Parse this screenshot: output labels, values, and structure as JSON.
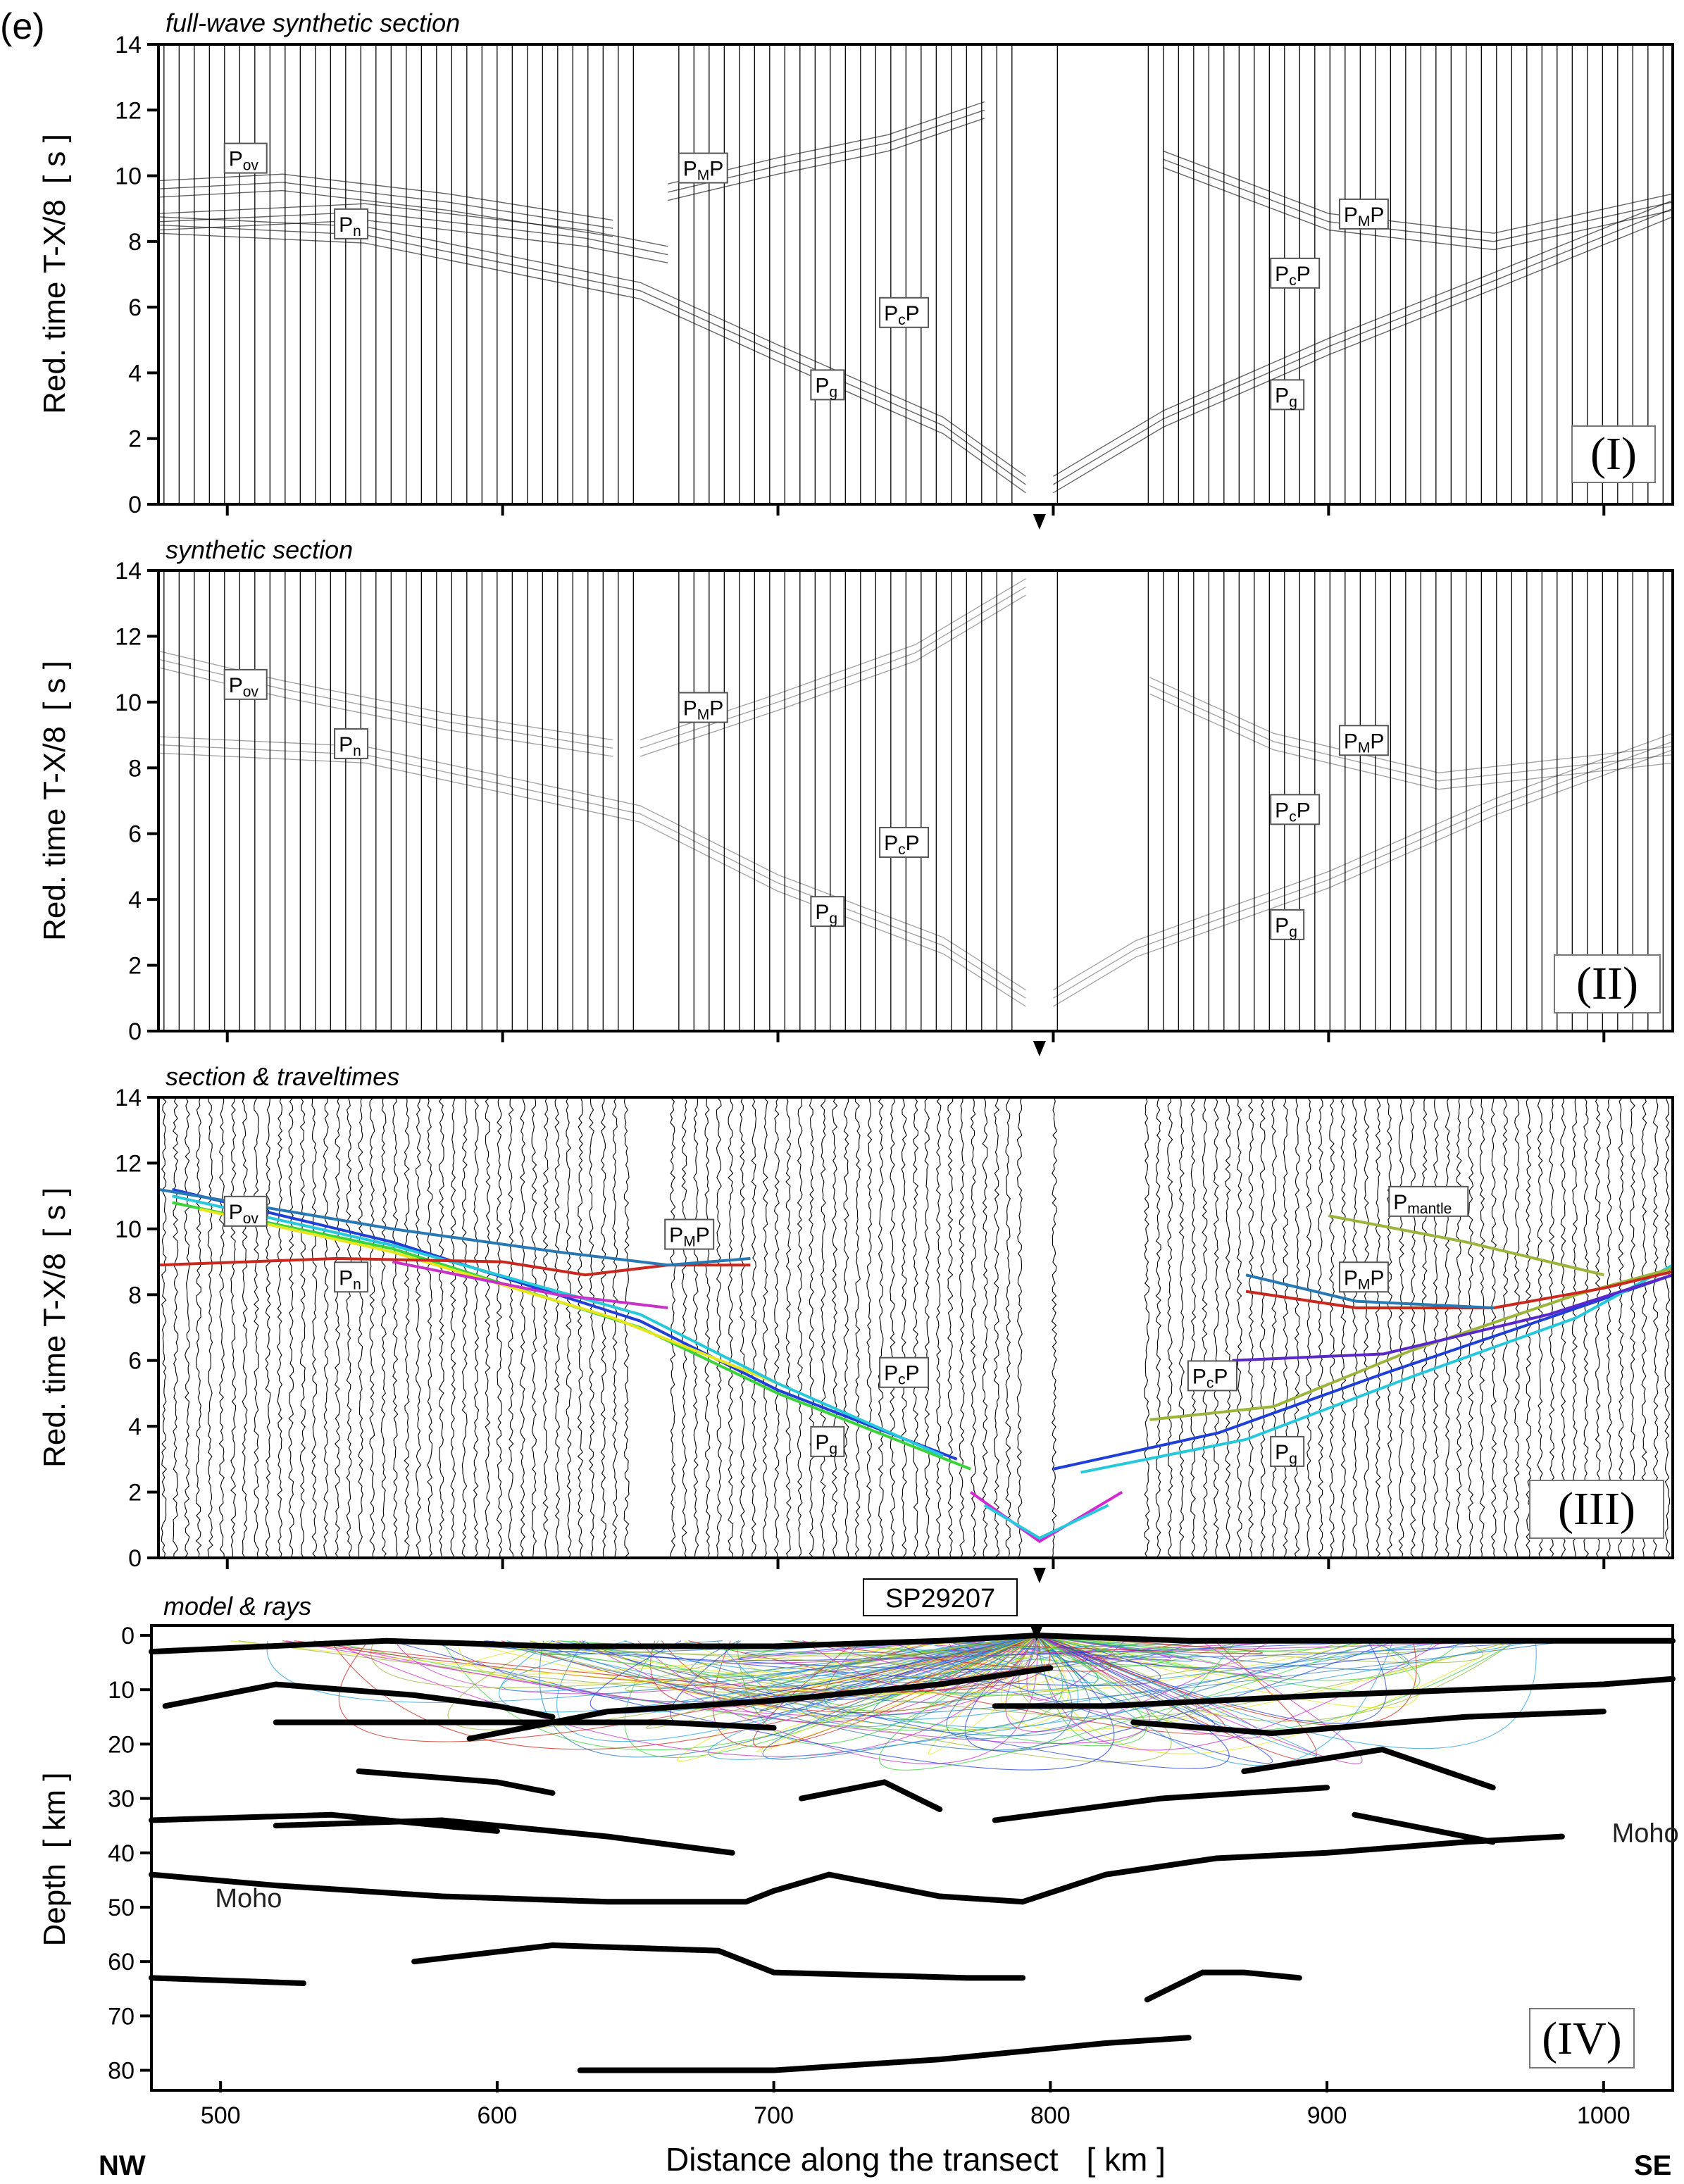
{
  "figure": {
    "panel_letter": "(e)",
    "xlabel": "Distance along the transect",
    "xunit": "[ km ]",
    "direction_left": "NW",
    "direction_right": "SE",
    "shot_point": "SP29207",
    "shot_km": 795
  },
  "chart_data": [
    {
      "type": "line",
      "panel": "I",
      "title": "full-wave synthetic section",
      "ylabel": "Red. time  T-X/8",
      "yunit": "[ s ]",
      "xlim": [
        475,
        1025
      ],
      "ylim": [
        0,
        14
      ],
      "xticks": [
        500,
        600,
        700,
        800,
        900,
        1000
      ],
      "yticks": [
        0,
        2,
        4,
        6,
        8,
        10,
        12,
        14
      ],
      "phases": [
        {
          "base": "P",
          "sub": "ov",
          "tail": "",
          "x": 500,
          "y": 10.3
        },
        {
          "base": "P",
          "sub": "n",
          "tail": "",
          "x": 540,
          "y": 8.3
        },
        {
          "base": "P",
          "sub": "M",
          "tail": "P",
          "x": 665,
          "y": 10.0
        },
        {
          "base": "P",
          "sub": "c",
          "tail": "P",
          "x": 738,
          "y": 5.6
        },
        {
          "base": "P",
          "sub": "g",
          "tail": "",
          "x": 713,
          "y": 3.4
        },
        {
          "base": "P",
          "sub": "M",
          "tail": "P",
          "x": 905,
          "y": 8.6
        },
        {
          "base": "P",
          "sub": "c",
          "tail": "P",
          "x": 880,
          "y": 6.8
        },
        {
          "base": "P",
          "sub": "g",
          "tail": "",
          "x": 880,
          "y": 3.1
        }
      ],
      "series": [
        {
          "name": "Pg",
          "x": [
            475,
            550,
            650,
            700,
            760,
            790
          ],
          "y": [
            8.5,
            8.2,
            6.5,
            4.6,
            2.4,
            0.6
          ]
        },
        {
          "name": "Pn",
          "x": [
            475,
            550,
            630,
            660
          ],
          "y": [
            8.6,
            8.9,
            8.1,
            7.6
          ]
        },
        {
          "name": "Pov",
          "x": [
            475,
            520,
            580,
            640
          ],
          "y": [
            9.6,
            9.8,
            9.2,
            8.4
          ]
        },
        {
          "name": "PmP",
          "x": [
            660,
            700,
            740,
            775
          ],
          "y": [
            9.5,
            10.3,
            11.0,
            12.0
          ]
        },
        {
          "name": "Pg-SE",
          "x": [
            800,
            840,
            900,
            960,
            1025
          ],
          "y": [
            0.6,
            2.6,
            4.8,
            6.8,
            9.0
          ]
        },
        {
          "name": "PmP-SE",
          "x": [
            840,
            900,
            960,
            1025
          ],
          "y": [
            10.5,
            8.6,
            8.0,
            9.2
          ]
        }
      ],
      "roman": "(I)"
    },
    {
      "type": "line",
      "panel": "II",
      "title": "synthetic section",
      "ylabel": "Red. time  T-X/8",
      "yunit": "[ s ]",
      "xlim": [
        475,
        1025
      ],
      "ylim": [
        0,
        14
      ],
      "xticks": [
        500,
        600,
        700,
        800,
        900,
        1000
      ],
      "yticks": [
        0,
        2,
        4,
        6,
        8,
        10,
        12,
        14
      ],
      "phases": [
        {
          "base": "P",
          "sub": "ov",
          "tail": "",
          "x": 500,
          "y": 10.3
        },
        {
          "base": "P",
          "sub": "n",
          "tail": "",
          "x": 540,
          "y": 8.5
        },
        {
          "base": "P",
          "sub": "M",
          "tail": "P",
          "x": 665,
          "y": 9.6
        },
        {
          "base": "P",
          "sub": "c",
          "tail": "P",
          "x": 738,
          "y": 5.5
        },
        {
          "base": "P",
          "sub": "g",
          "tail": "",
          "x": 713,
          "y": 3.4
        },
        {
          "base": "P",
          "sub": "M",
          "tail": "P",
          "x": 905,
          "y": 8.6
        },
        {
          "base": "P",
          "sub": "c",
          "tail": "P",
          "x": 880,
          "y": 6.5
        },
        {
          "base": "P",
          "sub": "g",
          "tail": "",
          "x": 880,
          "y": 3.0
        }
      ],
      "series": [
        {
          "name": "Pg",
          "x": [
            475,
            550,
            650,
            700,
            760,
            790
          ],
          "y": [
            8.7,
            8.4,
            6.6,
            4.5,
            2.6,
            1.0
          ]
        },
        {
          "name": "Pov",
          "x": [
            475,
            520,
            580,
            640
          ],
          "y": [
            11.3,
            10.4,
            9.4,
            8.6
          ]
        },
        {
          "name": "PmP",
          "x": [
            650,
            700,
            750,
            790
          ],
          "y": [
            8.6,
            10.0,
            11.5,
            13.5
          ]
        },
        {
          "name": "Pg-SE",
          "x": [
            800,
            830,
            900,
            960,
            1025
          ],
          "y": [
            1.0,
            2.5,
            4.6,
            6.8,
            8.8
          ]
        },
        {
          "name": "PmP-SE",
          "x": [
            835,
            880,
            940,
            1025
          ],
          "y": [
            10.5,
            8.8,
            7.6,
            8.4
          ]
        }
      ],
      "roman": "(II)"
    },
    {
      "type": "line",
      "panel": "III",
      "title": "section & traveltimes",
      "ylabel": "Red. time  T-X/8",
      "yunit": "[ s ]",
      "xlim": [
        475,
        1025
      ],
      "ylim": [
        0,
        14
      ],
      "xticks": [
        500,
        600,
        700,
        800,
        900,
        1000
      ],
      "yticks": [
        0,
        2,
        4,
        6,
        8,
        10,
        12,
        14
      ],
      "phases": [
        {
          "base": "P",
          "sub": "ov",
          "tail": "",
          "x": 500,
          "y": 10.3
        },
        {
          "base": "P",
          "sub": "n",
          "tail": "",
          "x": 540,
          "y": 8.3
        },
        {
          "base": "P",
          "sub": "M",
          "tail": "P",
          "x": 660,
          "y": 9.6
        },
        {
          "base": "P",
          "sub": "c",
          "tail": "P",
          "x": 738,
          "y": 5.4
        },
        {
          "base": "P",
          "sub": "g",
          "tail": "",
          "x": 713,
          "y": 3.3
        },
        {
          "base": "P",
          "sub": "mantle",
          "tail": "",
          "x": 923,
          "y": 10.6
        },
        {
          "base": "P",
          "sub": "M",
          "tail": "P",
          "x": 905,
          "y": 8.3
        },
        {
          "base": "P",
          "sub": "c",
          "tail": "P",
          "x": 850,
          "y": 5.3
        },
        {
          "base": "P",
          "sub": "g",
          "tail": "",
          "x": 880,
          "y": 3.0
        }
      ],
      "series": [
        {
          "name": "Pg main (blue)",
          "color": "#1f3fd6",
          "x": [
            480,
            560,
            650,
            700,
            765
          ],
          "y": [
            11.2,
            9.6,
            7.2,
            5.1,
            3.0
          ]
        },
        {
          "name": "Pg (green)",
          "color": "#3cd23c",
          "x": [
            480,
            560,
            650,
            700,
            770
          ],
          "y": [
            10.8,
            9.4,
            7.0,
            5.0,
            2.7
          ]
        },
        {
          "name": "Pg (yellow)",
          "color": "#e6e61e",
          "x": [
            490,
            560,
            640,
            700
          ],
          "y": [
            10.6,
            9.3,
            7.3,
            5.3
          ]
        },
        {
          "name": "Pg (cyan)",
          "color": "#28c8dc",
          "x": [
            480,
            560,
            650,
            700,
            760
          ],
          "y": [
            11.0,
            9.5,
            7.4,
            5.3,
            3.1
          ]
        },
        {
          "name": "Pn (red)",
          "color": "#c8281e",
          "x": [
            475,
            540,
            600,
            630,
            660,
            690
          ],
          "y": [
            8.9,
            9.1,
            9.0,
            8.6,
            8.9,
            8.9
          ]
        },
        {
          "name": "PmP (blue)",
          "color": "#2878b4",
          "x": [
            475,
            560,
            620,
            660,
            690
          ],
          "y": [
            11.2,
            10.0,
            9.3,
            8.9,
            9.1
          ]
        },
        {
          "name": "PcP (magenta)",
          "color": "#c832c8",
          "x": [
            560,
            620,
            660
          ],
          "y": [
            9.0,
            8.0,
            7.6
          ]
        },
        {
          "name": "direct (magenta)",
          "color": "#d228d2",
          "x": [
            770,
            795,
            825
          ],
          "y": [
            2.0,
            0.5,
            2.0
          ]
        },
        {
          "name": "direct (cyan)",
          "color": "#28c8dc",
          "x": [
            775,
            795,
            820
          ],
          "y": [
            1.6,
            0.6,
            1.6
          ]
        },
        {
          "name": "Pg-SE (blue)",
          "color": "#1f3fd6",
          "x": [
            800,
            860,
            920,
            980,
            1025
          ],
          "y": [
            2.7,
            3.8,
            5.6,
            7.3,
            8.6
          ]
        },
        {
          "name": "Pg-SE (cyan)",
          "color": "#28c8dc",
          "x": [
            810,
            870,
            930,
            990,
            1025
          ],
          "y": [
            2.6,
            3.6,
            5.5,
            7.3,
            8.9
          ]
        },
        {
          "name": "PcP-SE (olive)",
          "color": "#9ab43c",
          "x": [
            835,
            880,
            930,
            990,
            1025
          ],
          "y": [
            4.2,
            4.6,
            6.3,
            8.0,
            8.8
          ]
        },
        {
          "name": "PmP-SE (red)",
          "color": "#c8281e",
          "x": [
            870,
            910,
            960,
            1000,
            1025
          ],
          "y": [
            8.1,
            7.6,
            7.6,
            8.2,
            8.7
          ]
        },
        {
          "name": "PmP-SE (teal)",
          "color": "#2878b4",
          "x": [
            870,
            910,
            960
          ],
          "y": [
            8.6,
            7.8,
            7.6
          ]
        },
        {
          "name": "Pc-SE (purple)",
          "color": "#5a28c8",
          "x": [
            865,
            920,
            980,
            1025
          ],
          "y": [
            6.0,
            6.2,
            7.4,
            8.6
          ]
        },
        {
          "name": "Pmantle (olive)",
          "color": "#9ab43c",
          "x": [
            900,
            950,
            1000
          ],
          "y": [
            10.4,
            9.6,
            8.6
          ]
        }
      ],
      "roman": "(III)"
    },
    {
      "type": "line",
      "panel": "IV",
      "title": "model & rays",
      "ylabel": "Depth",
      "yunit": "[ km ]",
      "xlim": [
        475,
        1025
      ],
      "ylim": [
        82,
        0
      ],
      "xticks": [
        500,
        600,
        700,
        800,
        900,
        1000
      ],
      "yticks": [
        0,
        10,
        20,
        30,
        40,
        50,
        60,
        70,
        80
      ],
      "labels": [
        {
          "text": "Moho",
          "x": 498,
          "y": 50
        },
        {
          "text": "Moho",
          "x": 1003,
          "y": 38
        }
      ],
      "series": [
        {
          "name": "Moho NW",
          "x": [
            475,
            520,
            580,
            640,
            690,
            700,
            720,
            760,
            790
          ],
          "y": [
            44,
            46,
            48,
            49,
            49,
            47,
            44,
            48,
            49
          ]
        },
        {
          "name": "Moho SE",
          "x": [
            790,
            820,
            860,
            900,
            950,
            985
          ],
          "y": [
            49,
            44,
            41,
            40,
            38,
            37
          ]
        },
        {
          "name": "mid-crust 1",
          "x": [
            475,
            540,
            600
          ],
          "y": [
            34,
            33,
            36
          ]
        },
        {
          "name": "mid-crust 2",
          "x": [
            520,
            580,
            640,
            685
          ],
          "y": [
            35,
            34,
            37,
            40
          ]
        },
        {
          "name": "lower 1",
          "x": [
            570,
            620,
            680,
            700,
            770,
            790
          ],
          "y": [
            60,
            57,
            58,
            62,
            63,
            63
          ]
        },
        {
          "name": "lower 2",
          "x": [
            475,
            530
          ],
          "y": [
            63,
            64
          ]
        },
        {
          "name": "lower 3",
          "x": [
            835,
            855,
            870,
            890
          ],
          "y": [
            67,
            62,
            62,
            63
          ]
        },
        {
          "name": "deep",
          "x": [
            630,
            700,
            760,
            820,
            850
          ],
          "y": [
            80,
            80,
            78,
            75,
            74
          ]
        },
        {
          "name": "upper 1",
          "x": [
            480,
            520,
            570,
            600,
            620
          ],
          "y": [
            13,
            9,
            11,
            13,
            15
          ]
        },
        {
          "name": "upper 2",
          "x": [
            590,
            640,
            700,
            760,
            800
          ],
          "y": [
            19,
            14,
            12,
            9,
            6
          ]
        },
        {
          "name": "upper 3",
          "x": [
            520,
            600,
            660,
            700
          ],
          "y": [
            16,
            16,
            16,
            17
          ]
        },
        {
          "name": "upper 4",
          "x": [
            780,
            820,
            900,
            1000,
            1025
          ],
          "y": [
            13,
            13,
            11,
            9,
            8
          ]
        },
        {
          "name": "upper 5",
          "x": [
            830,
            880,
            950,
            1000
          ],
          "y": [
            16,
            18,
            15,
            14
          ]
        },
        {
          "name": "upper 6",
          "x": [
            870,
            920,
            960
          ],
          "y": [
            25,
            21,
            28
          ]
        },
        {
          "name": "upper 7",
          "x": [
            780,
            840,
            900
          ],
          "y": [
            34,
            30,
            28
          ]
        },
        {
          "name": "upper 8",
          "x": [
            910,
            960
          ],
          "y": [
            33,
            38
          ]
        },
        {
          "name": "upper 9",
          "x": [
            550,
            600,
            620
          ],
          "y": [
            25,
            27,
            29
          ]
        },
        {
          "name": "upper 10",
          "x": [
            710,
            740,
            760
          ],
          "y": [
            30,
            27,
            32
          ]
        },
        {
          "name": "surface",
          "x": [
            475,
            560,
            620,
            700,
            760,
            795,
            850,
            950,
            1025
          ],
          "y": [
            3,
            1,
            2,
            2,
            1,
            0,
            1,
            1,
            1
          ]
        }
      ],
      "roman": "(IV)"
    }
  ]
}
